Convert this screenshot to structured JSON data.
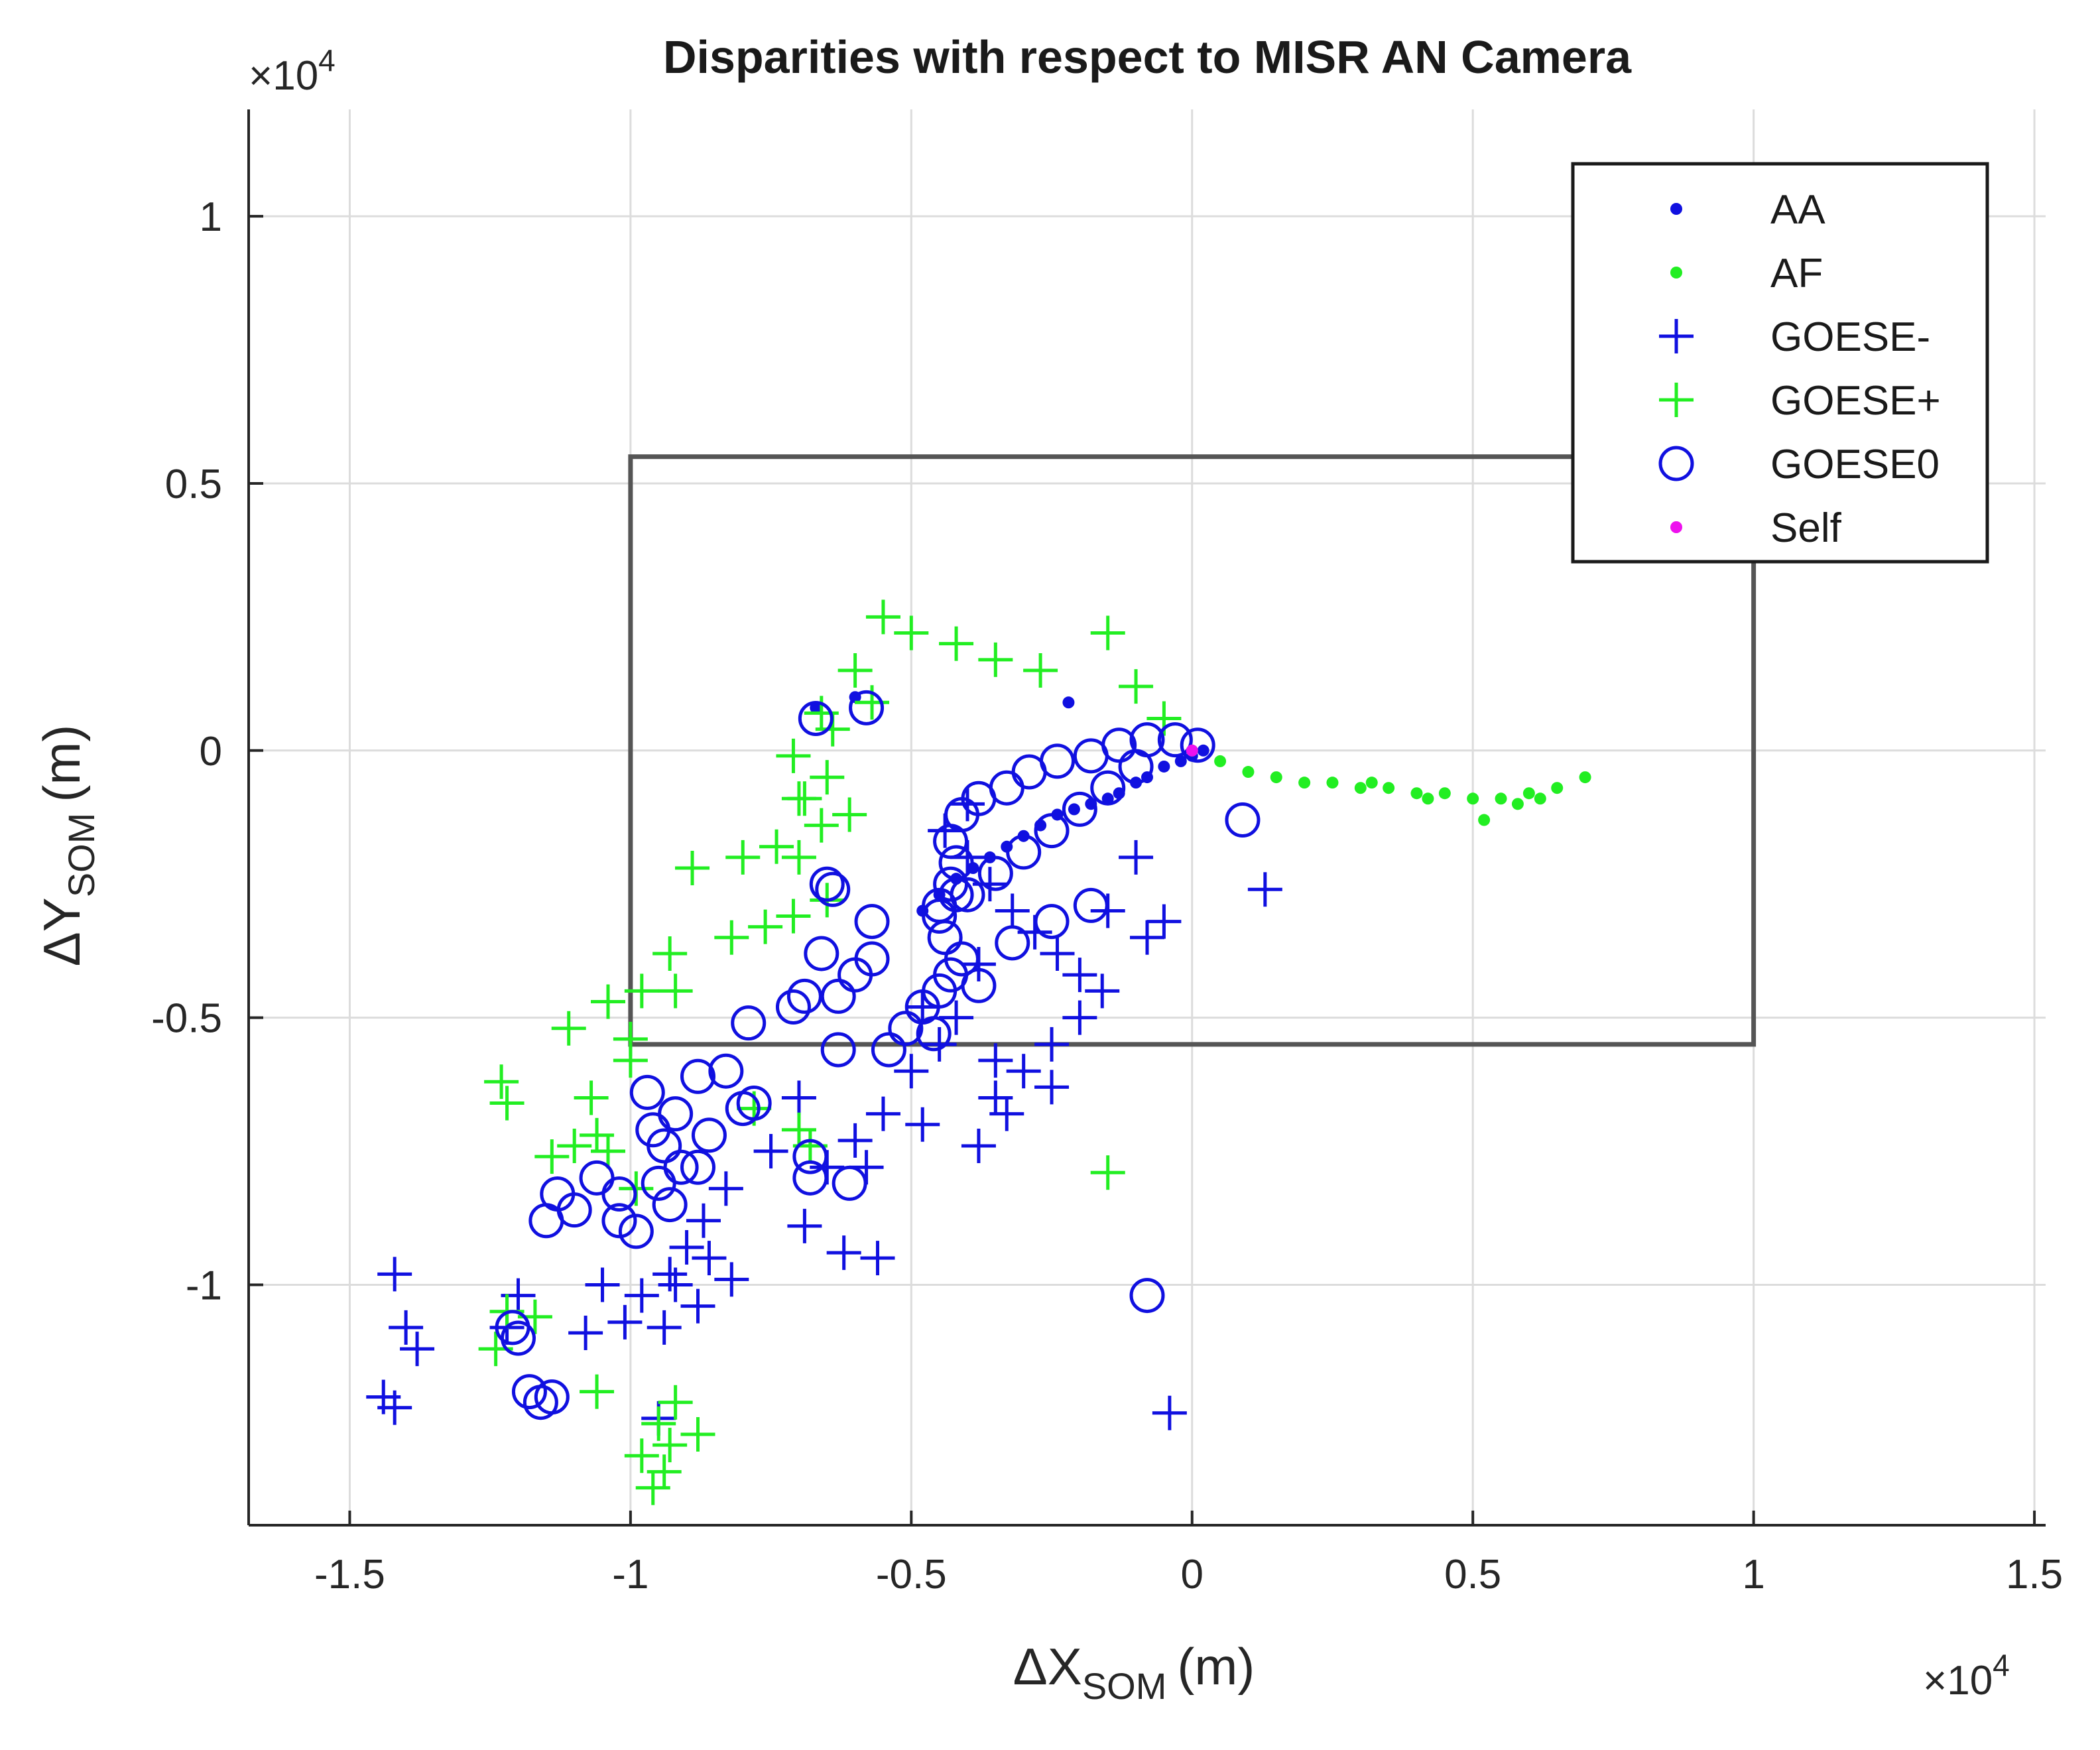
{
  "chart_data": {
    "type": "scatter",
    "title": "Disparities with respect to MISR AN Camera",
    "xlabel": {
      "main": "ΔX",
      "sub": "SOM",
      "unit": "(m)"
    },
    "ylabel": {
      "main": "ΔY",
      "sub": "SOM",
      "unit": "(m)"
    },
    "x_exponent": "×10",
    "x_exponent_power": "4",
    "y_exponent": "×10",
    "y_exponent_power": "4",
    "xlim": [
      -16800,
      15200
    ],
    "ylim": [
      -14500,
      12000
    ],
    "xticks": [
      -15000,
      -10000,
      -5000,
      0,
      5000,
      10000,
      15000
    ],
    "xtick_labels": [
      "-1.5",
      "-1",
      "-0.5",
      "0",
      "0.5",
      "1",
      "1.5"
    ],
    "yticks": [
      -10000,
      -5000,
      0,
      5000,
      10000
    ],
    "ytick_labels": [
      "-1",
      "-0.5",
      "0",
      "0.5",
      "1"
    ],
    "grid": true,
    "legend_position": "top-right",
    "rectangle": {
      "x0": -10000,
      "x1": 10000,
      "y0": -5500,
      "y1": 5500,
      "color": "#555555"
    },
    "series": [
      {
        "name": "AA",
        "marker": "dot",
        "color": "#1010e0",
        "points": [
          [
            200,
            0
          ],
          [
            0,
            -100
          ],
          [
            -200,
            -200
          ],
          [
            -500,
            -300
          ],
          [
            -800,
            -500
          ],
          [
            -1000,
            -600
          ],
          [
            -1300,
            -800
          ],
          [
            -1500,
            -900
          ],
          [
            -1800,
            -1000
          ],
          [
            -2100,
            -1100
          ],
          [
            -2400,
            -1200
          ],
          [
            -2700,
            -1400
          ],
          [
            -3000,
            -1600
          ],
          [
            -3300,
            -1800
          ],
          [
            -3600,
            -2000
          ],
          [
            -3900,
            -2200
          ],
          [
            -4200,
            -2400
          ],
          [
            -4500,
            -2700
          ],
          [
            -4800,
            -3000
          ],
          [
            -2200,
            900
          ],
          [
            -6000,
            1000
          ],
          [
            -6700,
            800
          ]
        ]
      },
      {
        "name": "AF",
        "marker": "dot",
        "color": "#22ee22",
        "points": [
          [
            0,
            0
          ],
          [
            500,
            -200
          ],
          [
            1000,
            -400
          ],
          [
            1500,
            -500
          ],
          [
            2000,
            -600
          ],
          [
            2500,
            -600
          ],
          [
            3000,
            -700
          ],
          [
            3500,
            -700
          ],
          [
            4000,
            -800
          ],
          [
            4500,
            -800
          ],
          [
            5000,
            -900
          ],
          [
            5500,
            -900
          ],
          [
            6000,
            -800
          ],
          [
            6500,
            -700
          ],
          [
            7000,
            -500
          ],
          [
            5200,
            -1300
          ],
          [
            5800,
            -1000
          ],
          [
            6200,
            -900
          ],
          [
            3200,
            -600
          ],
          [
            4200,
            -900
          ]
        ]
      },
      {
        "name": "GOESE-",
        "marker": "plus",
        "color": "#1010e0",
        "points": [
          [
            -4000,
            -1000
          ],
          [
            -4400,
            -1500
          ],
          [
            -4000,
            -2000
          ],
          [
            -3600,
            -2500
          ],
          [
            -3200,
            -3000
          ],
          [
            -2800,
            -3400
          ],
          [
            -2400,
            -3800
          ],
          [
            -2000,
            -4200
          ],
          [
            -1600,
            -4500
          ],
          [
            -3800,
            -4000
          ],
          [
            -4200,
            -5000
          ],
          [
            -4500,
            -5500
          ],
          [
            -5000,
            -6000
          ],
          [
            -3500,
            -6500
          ],
          [
            -3000,
            -6000
          ],
          [
            -2500,
            -5500
          ],
          [
            -2000,
            -5000
          ],
          [
            -1500,
            -3000
          ],
          [
            -1000,
            -2000
          ],
          [
            -500,
            -3200
          ],
          [
            -800,
            -3500
          ],
          [
            -5500,
            -6800
          ],
          [
            -6000,
            -7300
          ],
          [
            -6500,
            -7800
          ],
          [
            -4800,
            -7000
          ],
          [
            -3800,
            -7400
          ],
          [
            -3300,
            -6800
          ],
          [
            -2500,
            -6300
          ],
          [
            -8300,
            -8200
          ],
          [
            -8700,
            -8800
          ],
          [
            -9000,
            -9300
          ],
          [
            -9300,
            -9800
          ],
          [
            -8600,
            -9500
          ],
          [
            -9800,
            -10200
          ],
          [
            -10500,
            -10000
          ],
          [
            -10800,
            -10900
          ],
          [
            -9400,
            -10800
          ],
          [
            -8200,
            -9900
          ],
          [
            -6900,
            -8900
          ],
          [
            -6200,
            -9400
          ],
          [
            -5600,
            -9500
          ],
          [
            1300,
            -2600
          ],
          [
            -400,
            -12400
          ],
          [
            -14200,
            -9800
          ],
          [
            -14000,
            -10800
          ],
          [
            -13800,
            -11200
          ],
          [
            -14400,
            -12100
          ],
          [
            -14200,
            -12300
          ],
          [
            -12000,
            -10200
          ],
          [
            -12200,
            -10800
          ],
          [
            -9500,
            -12500
          ],
          [
            -4800,
            -4800
          ],
          [
            -3500,
            -5800
          ],
          [
            -7500,
            -7500
          ],
          [
            -5800,
            -7800
          ],
          [
            -9200,
            -10000
          ],
          [
            -8800,
            -10400
          ],
          [
            -10100,
            -10700
          ],
          [
            -7000,
            -6500
          ]
        ]
      },
      {
        "name": "GOESE+",
        "marker": "plus",
        "color": "#22ee22",
        "points": [
          [
            -5500,
            2500
          ],
          [
            -5000,
            2200
          ],
          [
            -4200,
            2000
          ],
          [
            -3500,
            1700
          ],
          [
            -2700,
            1500
          ],
          [
            -1500,
            2200
          ],
          [
            -1000,
            1200
          ],
          [
            -500,
            600
          ],
          [
            -6000,
            1500
          ],
          [
            -5700,
            900
          ],
          [
            -6600,
            700
          ],
          [
            -7100,
            -100
          ],
          [
            -6400,
            400
          ],
          [
            -6500,
            -500
          ],
          [
            -7000,
            -900
          ],
          [
            -6100,
            -1200
          ],
          [
            -6600,
            -1400
          ],
          [
            -7400,
            -1800
          ],
          [
            -8000,
            -2000
          ],
          [
            -7000,
            -2000
          ],
          [
            -8900,
            -2200
          ],
          [
            -6500,
            -2800
          ],
          [
            -7100,
            -3100
          ],
          [
            -7600,
            -3300
          ],
          [
            -8200,
            -3500
          ],
          [
            -9300,
            -3800
          ],
          [
            -9800,
            -4500
          ],
          [
            -10400,
            -4700
          ],
          [
            -11100,
            -5200
          ],
          [
            -10000,
            -5800
          ],
          [
            -10700,
            -6500
          ],
          [
            -12300,
            -6200
          ],
          [
            -12200,
            -6600
          ],
          [
            -10600,
            -7200
          ],
          [
            -10400,
            -7500
          ],
          [
            -11000,
            -7400
          ],
          [
            -11400,
            -7600
          ],
          [
            -9900,
            -8200
          ],
          [
            -7800,
            -6700
          ],
          [
            -7000,
            -7100
          ],
          [
            -6800,
            -7400
          ],
          [
            -1500,
            -7900
          ],
          [
            -10600,
            -12000
          ],
          [
            -9500,
            -12600
          ],
          [
            -9300,
            -13000
          ],
          [
            -9400,
            -13500
          ],
          [
            -9800,
            -13200
          ],
          [
            -9600,
            -13800
          ],
          [
            -8800,
            -12800
          ],
          [
            -9200,
            -12200
          ],
          [
            -12200,
            -10500
          ],
          [
            -12400,
            -11200
          ],
          [
            -11700,
            -10600
          ],
          [
            -10000,
            -5400
          ],
          [
            -9200,
            -4500
          ],
          [
            -6900,
            -900
          ]
        ]
      },
      {
        "name": "GOESE0",
        "marker": "circle",
        "color": "#1010e0",
        "points": [
          [
            -6700,
            600
          ],
          [
            -5800,
            800
          ],
          [
            -6500,
            -2500
          ],
          [
            -6400,
            -2600
          ],
          [
            -6600,
            -3800
          ],
          [
            -5700,
            -3900
          ],
          [
            -5700,
            -3200
          ],
          [
            -6900,
            -4600
          ],
          [
            -7100,
            -4800
          ],
          [
            -7900,
            -5100
          ],
          [
            -6300,
            -5600
          ],
          [
            -6300,
            -4600
          ],
          [
            -6000,
            -4200
          ],
          [
            -9700,
            -6400
          ],
          [
            -8800,
            -6100
          ],
          [
            -8300,
            -6000
          ],
          [
            -8000,
            -6700
          ],
          [
            -7800,
            -6600
          ],
          [
            -9200,
            -6800
          ],
          [
            -9600,
            -7100
          ],
          [
            -9400,
            -7400
          ],
          [
            -9100,
            -7800
          ],
          [
            -9500,
            -8100
          ],
          [
            -10200,
            -8300
          ],
          [
            -10600,
            -8000
          ],
          [
            -11000,
            -8600
          ],
          [
            -11300,
            -8300
          ],
          [
            -11500,
            -8800
          ],
          [
            -10200,
            -8800
          ],
          [
            -9900,
            -9000
          ],
          [
            -9300,
            -8500
          ],
          [
            -8800,
            -7800
          ],
          [
            -8600,
            -7200
          ],
          [
            -6800,
            -7600
          ],
          [
            -6800,
            -8000
          ],
          [
            -6100,
            -8100
          ],
          [
            -5400,
            -5600
          ],
          [
            -5100,
            -5200
          ],
          [
            -4800,
            -4800
          ],
          [
            -4500,
            -4500
          ],
          [
            -4300,
            -4200
          ],
          [
            -4100,
            -3900
          ],
          [
            -4400,
            -3500
          ],
          [
            -4500,
            -2900
          ],
          [
            -4300,
            -2500
          ],
          [
            -4200,
            -2100
          ],
          [
            -4300,
            -1700
          ],
          [
            -4100,
            -1200
          ],
          [
            -3800,
            -900
          ],
          [
            -3300,
            -700
          ],
          [
            -2900,
            -400
          ],
          [
            -2400,
            -200
          ],
          [
            -1800,
            -100
          ],
          [
            -1300,
            100
          ],
          [
            -800,
            200
          ],
          [
            -300,
            200
          ],
          [
            100,
            100
          ],
          [
            900,
            -1300
          ],
          [
            -800,
            -10200
          ],
          [
            -11800,
            -12000
          ],
          [
            -11600,
            -12200
          ],
          [
            -11400,
            -12100
          ],
          [
            -12100,
            -10800
          ],
          [
            -12000,
            -11000
          ],
          [
            -4500,
            -3100
          ],
          [
            -4000,
            -2700
          ],
          [
            -3500,
            -2300
          ],
          [
            -3000,
            -1900
          ],
          [
            -2500,
            -1500
          ],
          [
            -2000,
            -1100
          ],
          [
            -1500,
            -700
          ],
          [
            -1000,
            -300
          ],
          [
            -4200,
            -2700
          ],
          [
            -3200,
            -3600
          ],
          [
            -2500,
            -3200
          ],
          [
            -1800,
            -2900
          ],
          [
            -3800,
            -4400
          ],
          [
            -4600,
            -5300
          ]
        ]
      },
      {
        "name": "Self",
        "marker": "dot",
        "color": "#ee11ee",
        "points": [
          [
            0,
            0
          ]
        ]
      }
    ]
  }
}
